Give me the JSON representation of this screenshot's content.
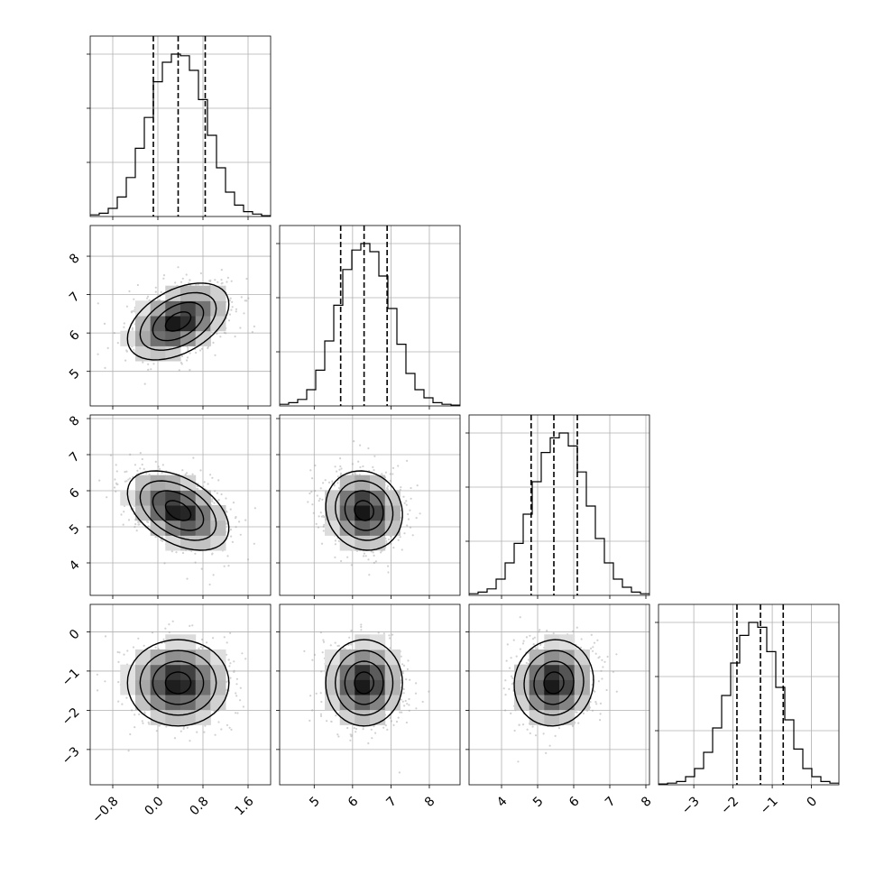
{
  "chart_data": {
    "type": "corner",
    "n_params": 4,
    "params": [
      {
        "id": "p0",
        "range": [
          -1.2,
          2.0
        ],
        "ticks": [
          -0.8,
          0.0,
          0.8,
          1.6
        ],
        "tick_labels": [
          "−0.8",
          "0.0",
          "0.8",
          "1.6"
        ],
        "bin_edges": [
          -1.2,
          -1.04,
          -0.88,
          -0.72,
          -0.56,
          -0.4,
          -0.24,
          -0.08,
          0.08,
          0.24,
          0.4,
          0.56,
          0.72,
          0.88,
          1.04,
          1.2,
          1.36,
          1.52,
          1.68,
          1.84,
          2.0
        ],
        "hist_counts": [
          0.01,
          0.02,
          0.05,
          0.12,
          0.24,
          0.42,
          0.61,
          0.83,
          0.95,
          1.0,
          0.99,
          0.9,
          0.72,
          0.5,
          0.3,
          0.15,
          0.07,
          0.03,
          0.015,
          0.005
        ],
        "quantiles": [
          -0.08,
          0.36,
          0.84
        ]
      },
      {
        "id": "p1",
        "range": [
          4.1,
          8.8
        ],
        "ticks": [
          5,
          6,
          7,
          8
        ],
        "tick_labels": [
          "5",
          "6",
          "7",
          "8"
        ],
        "bin_edges": [
          4.1,
          4.335,
          4.57,
          4.805,
          5.04,
          5.275,
          5.51,
          5.745,
          5.98,
          6.215,
          6.45,
          6.685,
          6.92,
          7.155,
          7.39,
          7.625,
          7.86,
          8.095,
          8.33,
          8.565,
          8.8
        ],
        "hist_counts": [
          0.01,
          0.02,
          0.04,
          0.1,
          0.22,
          0.4,
          0.62,
          0.84,
          0.96,
          1.0,
          0.95,
          0.8,
          0.6,
          0.38,
          0.2,
          0.1,
          0.05,
          0.02,
          0.01,
          0.005
        ],
        "quantiles": [
          5.69,
          6.3,
          6.9
        ]
      },
      {
        "id": "p2",
        "range": [
          3.1,
          8.1
        ],
        "ticks": [
          4,
          5,
          6,
          7,
          8
        ],
        "tick_labels": [
          "4",
          "5",
          "6",
          "7",
          "8"
        ],
        "bin_edges": [
          3.1,
          3.35,
          3.6,
          3.85,
          4.1,
          4.35,
          4.6,
          4.85,
          5.1,
          5.35,
          5.6,
          5.85,
          6.1,
          6.35,
          6.6,
          6.85,
          7.1,
          7.35,
          7.6,
          7.85,
          8.1
        ],
        "hist_counts": [
          0.01,
          0.02,
          0.04,
          0.1,
          0.2,
          0.32,
          0.5,
          0.7,
          0.88,
          0.97,
          1.0,
          0.92,
          0.76,
          0.55,
          0.35,
          0.2,
          0.1,
          0.05,
          0.02,
          0.01
        ],
        "quantiles": [
          4.82,
          5.45,
          6.1
        ]
      },
      {
        "id": "p3",
        "range": [
          -3.9,
          0.7
        ],
        "ticks": [
          -3,
          -2,
          -1,
          0
        ],
        "tick_labels": [
          "−3",
          "−2",
          "−1",
          "0"
        ],
        "bin_edges": [
          -3.9,
          -3.67,
          -3.44,
          -3.21,
          -2.98,
          -2.75,
          -2.52,
          -2.29,
          -2.06,
          -1.83,
          -1.6,
          -1.37,
          -1.14,
          -0.91,
          -0.68,
          -0.45,
          -0.22,
          0.01,
          0.24,
          0.47,
          0.7
        ],
        "hist_counts": [
          0.005,
          0.01,
          0.02,
          0.05,
          0.1,
          0.2,
          0.35,
          0.55,
          0.75,
          0.92,
          1.0,
          0.97,
          0.82,
          0.6,
          0.4,
          0.22,
          0.1,
          0.05,
          0.02,
          0.01
        ],
        "quantiles": [
          -1.9,
          -1.3,
          -0.72
        ]
      }
    ],
    "pairs": [
      {
        "x": 0,
        "y": 1,
        "mean": [
          0.36,
          6.3
        ],
        "sd": [
          0.45,
          0.5
        ],
        "rho": 0.45
      },
      {
        "x": 0,
        "y": 2,
        "mean": [
          0.36,
          5.45
        ],
        "sd": [
          0.45,
          0.55
        ],
        "rho": -0.45
      },
      {
        "x": 1,
        "y": 2,
        "mean": [
          6.3,
          5.45
        ],
        "sd": [
          0.5,
          0.55
        ],
        "rho": -0.1
      },
      {
        "x": 0,
        "y": 3,
        "mean": [
          0.36,
          -1.3
        ],
        "sd": [
          0.45,
          0.55
        ],
        "rho": 0.0
      },
      {
        "x": 1,
        "y": 3,
        "mean": [
          6.3,
          -1.3
        ],
        "sd": [
          0.5,
          0.55
        ],
        "rho": 0.0
      },
      {
        "x": 2,
        "y": 3,
        "mean": [
          5.45,
          -1.3
        ],
        "sd": [
          0.55,
          0.55
        ],
        "rho": 0.05
      }
    ],
    "contour_sigma_levels": [
      0.5,
      1.0,
      1.5,
      2.0
    ],
    "grid": true,
    "colors": {
      "density_dark": "#000000",
      "density_light": "#ffffff",
      "scatter": "#9a9a9a",
      "lines": "#000000"
    }
  }
}
